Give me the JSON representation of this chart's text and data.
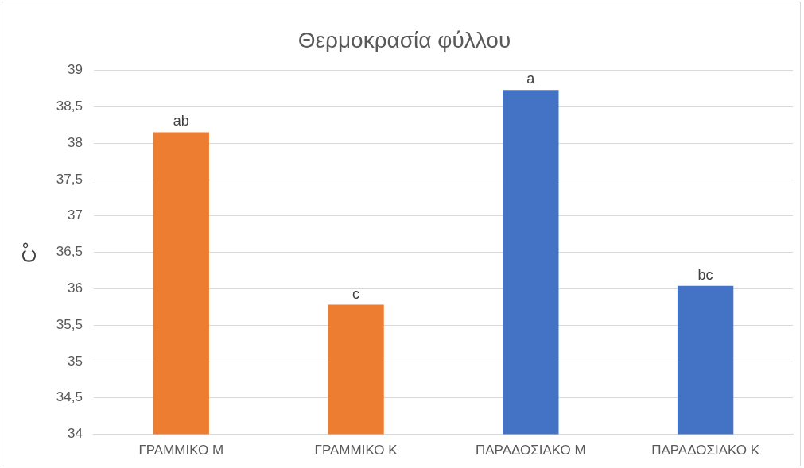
{
  "chart_data": {
    "type": "bar",
    "title": "Θερμοκρασία φύλλου",
    "ylabel": "C°",
    "categories": [
      "ΓΡΑΜΜΙΚΟ Μ",
      "ΓΡΑΜΜΙΚΟ Κ",
      "ΠΑΡΑΔΟΣΙΑΚΟ Μ",
      "ΠΑΡΑΔΟΣΙΑΚΟ Κ"
    ],
    "values": [
      38.15,
      35.78,
      38.73,
      36.04
    ],
    "colors": [
      "#ed7d31",
      "#ed7d31",
      "#4472c4",
      "#4472c4"
    ],
    "value_labels": [
      "ab",
      "c",
      "a",
      "bc"
    ],
    "ylim": [
      34,
      39
    ],
    "yticks": [
      34,
      {
        "value": 34.5,
        "label": "34,5"
      },
      35,
      {
        "value": 35.5,
        "label": "35,5"
      },
      36,
      {
        "value": 36.5,
        "label": "36,5"
      },
      37,
      {
        "value": 37.5,
        "label": "37,5"
      },
      38,
      {
        "value": 38.5,
        "label": "38,5"
      },
      39
    ],
    "grid": "y",
    "legend": false
  }
}
